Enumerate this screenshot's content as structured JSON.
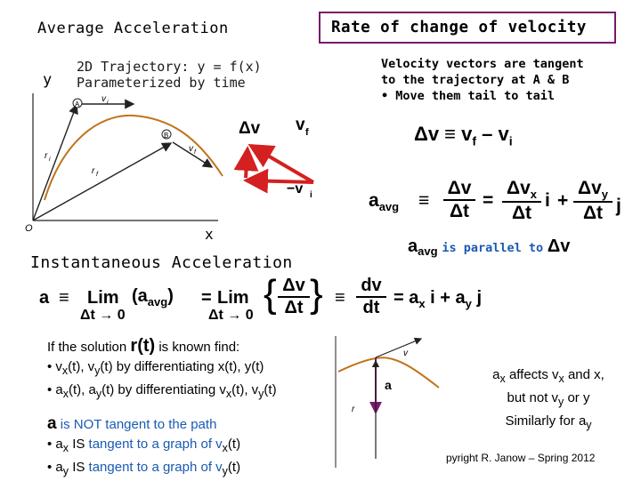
{
  "headings": {
    "avg": "Average Acceleration",
    "rate": "Rate of change of velocity",
    "inst": "Instantaneous Acceleration"
  },
  "trajectory": {
    "line1": "2D Trajectory: y = f(x)",
    "line2": "Parameterized by time",
    "y_axis": "y",
    "x_axis": "x",
    "origin": "O",
    "point_a": "A",
    "point_b": "B",
    "vi": "v",
    "vi_sub": "i",
    "vf": "v",
    "vf_sub": "f",
    "ri": "r",
    "ri_sub": "i",
    "rf": "r",
    "rf_sub": "f",
    "delta_v": "Δv",
    "big_vf": "v",
    "big_vf_sub": "f",
    "neg_vi": "−v",
    "neg_vi_sub": "i"
  },
  "tangent_note": {
    "line1": "Velocity vectors are tangent",
    "line2": "to the trajectory at A & B",
    "line3": "• Move them tail to tail"
  },
  "equations": {
    "dv_def": "Δv ≡ v",
    "dv_sub_f": "f",
    "dv_minus": "– v",
    "dv_sub_i": "i",
    "aavg_lhs": "a",
    "aavg_sub": "avg",
    "aavg_eq": "≡",
    "frac_num": "Δv",
    "frac_den": "Δt",
    "eq": "=",
    "frac_vx_num": "Δv",
    "frac_vx_sub": "x",
    "frac_vy_num": "Δv",
    "frac_vy_sub": "y",
    "i_hat": "i",
    "j_hat": "j",
    "plus": "+",
    "parallel_a": "a",
    "parallel_sub": "avg",
    "parallel_text": "is parallel to",
    "parallel_dv": "Δv"
  },
  "instantaneous": {
    "a": "a",
    "equiv": "≡",
    "lim": "Lim",
    "lim_sub": "Δt → 0",
    "aavg_paren": "(a",
    "aavg_paren_sub": "avg",
    "aavg_paren_close": ")",
    "eq": "=",
    "dv": "Δv",
    "dt": "Δt",
    "dv_d": "dv",
    "dt_d": "dt",
    "equiv2": "≡",
    "rhs_a": "= a",
    "rhs_x": "x",
    "rhs_i": "i",
    "rhs_plus": "+ a",
    "rhs_y": "y",
    "rhs_j": "j"
  },
  "solution": {
    "intro_pre": "If the solution",
    "intro_r": "r(t)",
    "intro_post": "is known find:",
    "b1_a": "• v",
    "b1_x": "x",
    "b1_b": "(t), v",
    "b1_y": "y",
    "b1_c": "(t) by differentiating x(t), y(t)",
    "b2_a": "• a",
    "b2_x": "x",
    "b2_b": "(t), a",
    "b2_y": "y",
    "b2_c": "(t) by differentiating v",
    "b2_x2": "x",
    "b2_d": "(t), v",
    "b2_y2": "y",
    "b2_e": "(t)",
    "nt_a": "a",
    "nt_text": "is NOT tangent to the path",
    "b3_a": "• a",
    "b3_x": "x",
    "b3_is": "IS",
    "b3_b": "tangent to a graph of v",
    "b3_x2": "x",
    "b3_c": "(t)",
    "b4_a": "• a",
    "b4_y": "y",
    "b4_is": "IS",
    "b4_b": "tangent to a graph of v",
    "b4_y2": "y",
    "b4_c": "(t)"
  },
  "components": {
    "l1_a": "a",
    "l1_x": "x",
    "l1_b": "affects v",
    "l1_x2": "x",
    "l1_c": "and x,",
    "line2": "but not v",
    "line2_y": "y",
    "line2_b": "or y",
    "line3": "Similarly for a",
    "line3_y": "y"
  },
  "mini": {
    "v": "v",
    "a": "a",
    "r": "r"
  },
  "copyright": "pyright R. Janow – Spring 2012",
  "colors": {
    "trajectory": "#c0741a",
    "vector_red": "#d42020",
    "vector_dark": "#222222",
    "blue_text": "#1a5ab3",
    "mini_arrow": "#7a1a6a",
    "box_border": "#7a1a6a"
  }
}
